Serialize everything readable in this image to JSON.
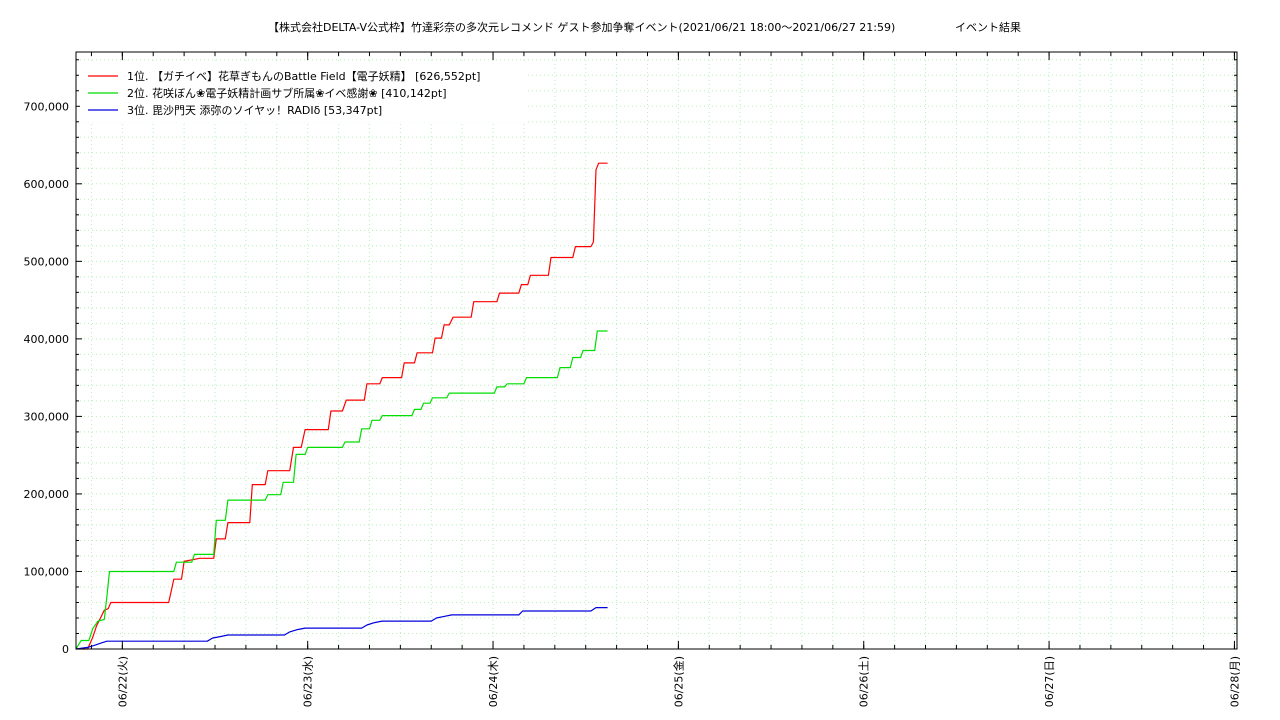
{
  "chart_data": {
    "type": "line",
    "title": "【株式会社DELTA-V公式枠】竹達彩奈の多次元レコメンド ゲスト参加争奪イベント(2021/06/21 18:00〜2021/06/27 21:59)",
    "subtitle": "イベント結果",
    "xlabel": "",
    "ylabel": "",
    "x_range": [
      "2021-06-21 18:00",
      "2021-06-28 00:20"
    ],
    "ylim": [
      0,
      770000
    ],
    "grid": true,
    "legend_position": "top-left",
    "x_ticks": [
      "06/22(火)",
      "06/23(水)",
      "06/24(木)",
      "06/25(金)",
      "06/26(土)",
      "06/27(日)",
      "06/28(月)"
    ],
    "y_ticks": [
      "0",
      "100,000",
      "200,000",
      "300,000",
      "400,000",
      "500,000",
      "600,000",
      "700,000"
    ],
    "series": [
      {
        "name": "1位. 【ガチイベ】花草ぎもんのBattle Field【電子妖精】 [626,552pt]",
        "color": "#ff0000",
        "points": [
          [
            "2021-06-21 18:00",
            0
          ],
          [
            "2021-06-21 19:30",
            0
          ],
          [
            "2021-06-21 20:10",
            15000
          ],
          [
            "2021-06-21 20:40",
            30000
          ],
          [
            "2021-06-21 21:10",
            40000
          ],
          [
            "2021-06-21 21:40",
            50000
          ],
          [
            "2021-06-21 22:10",
            52000
          ],
          [
            "2021-06-21 22:30",
            60000
          ],
          [
            "2021-06-22 06:00",
            60000
          ],
          [
            "2021-06-22 06:40",
            90000
          ],
          [
            "2021-06-22 07:40",
            90000
          ],
          [
            "2021-06-22 08:00",
            113000
          ],
          [
            "2021-06-22 10:00",
            117000
          ],
          [
            "2021-06-22 11:50",
            117000
          ],
          [
            "2021-06-22 12:10",
            142000
          ],
          [
            "2021-06-22 13:20",
            142000
          ],
          [
            "2021-06-22 13:40",
            163000
          ],
          [
            "2021-06-22 16:30",
            163000
          ],
          [
            "2021-06-22 16:50",
            212000
          ],
          [
            "2021-06-22 18:30",
            212000
          ],
          [
            "2021-06-22 18:50",
            230000
          ],
          [
            "2021-06-22 21:40",
            230000
          ],
          [
            "2021-06-22 22:10",
            260000
          ],
          [
            "2021-06-22 23:10",
            260000
          ],
          [
            "2021-06-22 23:40",
            283000
          ],
          [
            "2021-06-23 02:40",
            283000
          ],
          [
            "2021-06-23 03:00",
            307000
          ],
          [
            "2021-06-23 04:30",
            307000
          ],
          [
            "2021-06-23 05:00",
            321000
          ],
          [
            "2021-06-23 07:20",
            321000
          ],
          [
            "2021-06-23 07:40",
            342000
          ],
          [
            "2021-06-23 09:20",
            342000
          ],
          [
            "2021-06-23 09:40",
            350000
          ],
          [
            "2021-06-23 12:10",
            350000
          ],
          [
            "2021-06-23 12:30",
            369000
          ],
          [
            "2021-06-23 13:50",
            369000
          ],
          [
            "2021-06-23 14:10",
            382000
          ],
          [
            "2021-06-23 16:10",
            382000
          ],
          [
            "2021-06-23 16:30",
            401000
          ],
          [
            "2021-06-23 17:20",
            401000
          ],
          [
            "2021-06-23 17:40",
            418000
          ],
          [
            "2021-06-23 18:20",
            418000
          ],
          [
            "2021-06-23 18:50",
            428000
          ],
          [
            "2021-06-23 21:10",
            428000
          ],
          [
            "2021-06-23 21:30",
            448000
          ],
          [
            "2021-06-24 00:30",
            448000
          ],
          [
            "2021-06-24 00:50",
            459000
          ],
          [
            "2021-06-24 03:20",
            459000
          ],
          [
            "2021-06-24 03:40",
            470000
          ],
          [
            "2021-06-24 04:30",
            470000
          ],
          [
            "2021-06-24 04:50",
            482000
          ],
          [
            "2021-06-24 07:10",
            482000
          ],
          [
            "2021-06-24 07:30",
            505000
          ],
          [
            "2021-06-24 10:20",
            505000
          ],
          [
            "2021-06-24 10:40",
            519000
          ],
          [
            "2021-06-24 12:40",
            519000
          ],
          [
            "2021-06-24 13:00",
            525000
          ],
          [
            "2021-06-24 13:20",
            618000
          ],
          [
            "2021-06-24 13:40",
            626552
          ],
          [
            "2021-06-24 14:50",
            626552
          ]
        ]
      },
      {
        "name": "2位. 花咲ぼん❀電子妖精計画サブ所属❀イベ感謝❀ [410,142pt]",
        "color": "#00dd00",
        "points": [
          [
            "2021-06-21 18:00",
            0
          ],
          [
            "2021-06-21 18:40",
            11000
          ],
          [
            "2021-06-21 19:40",
            11000
          ],
          [
            "2021-06-21 20:10",
            26000
          ],
          [
            "2021-06-21 20:50",
            36000
          ],
          [
            "2021-06-21 21:40",
            38000
          ],
          [
            "2021-06-21 22:00",
            68000
          ],
          [
            "2021-06-21 22:20",
            100000
          ],
          [
            "2021-06-22 06:40",
            100000
          ],
          [
            "2021-06-22 07:00",
            112000
          ],
          [
            "2021-06-22 09:00",
            112000
          ],
          [
            "2021-06-22 09:20",
            122000
          ],
          [
            "2021-06-22 11:50",
            122000
          ],
          [
            "2021-06-22 12:10",
            166000
          ],
          [
            "2021-06-22 13:20",
            166000
          ],
          [
            "2021-06-22 13:40",
            192000
          ],
          [
            "2021-06-22 18:30",
            192000
          ],
          [
            "2021-06-22 18:50",
            199000
          ],
          [
            "2021-06-22 20:30",
            199000
          ],
          [
            "2021-06-22 20:50",
            215000
          ],
          [
            "2021-06-22 22:10",
            215000
          ],
          [
            "2021-06-22 22:30",
            251000
          ],
          [
            "2021-06-22 23:40",
            251000
          ],
          [
            "2021-06-23 00:00",
            260000
          ],
          [
            "2021-06-23 04:30",
            260000
          ],
          [
            "2021-06-23 04:50",
            267000
          ],
          [
            "2021-06-23 06:40",
            267000
          ],
          [
            "2021-06-23 07:00",
            284000
          ],
          [
            "2021-06-23 08:00",
            284000
          ],
          [
            "2021-06-23 08:20",
            295000
          ],
          [
            "2021-06-23 09:20",
            295000
          ],
          [
            "2021-06-23 09:40",
            301000
          ],
          [
            "2021-06-23 13:30",
            301000
          ],
          [
            "2021-06-23 13:50",
            309000
          ],
          [
            "2021-06-23 14:40",
            309000
          ],
          [
            "2021-06-23 15:00",
            317000
          ],
          [
            "2021-06-23 15:50",
            317000
          ],
          [
            "2021-06-23 16:10",
            324000
          ],
          [
            "2021-06-23 18:00",
            324000
          ],
          [
            "2021-06-23 18:20",
            330000
          ],
          [
            "2021-06-24 00:10",
            330000
          ],
          [
            "2021-06-24 00:30",
            338000
          ],
          [
            "2021-06-24 01:30",
            338000
          ],
          [
            "2021-06-24 01:50",
            342000
          ],
          [
            "2021-06-24 04:00",
            342000
          ],
          [
            "2021-06-24 04:20",
            350000
          ],
          [
            "2021-06-24 08:20",
            350000
          ],
          [
            "2021-06-24 08:40",
            363000
          ],
          [
            "2021-06-24 10:00",
            363000
          ],
          [
            "2021-06-24 10:20",
            376000
          ],
          [
            "2021-06-24 11:20",
            376000
          ],
          [
            "2021-06-24 11:40",
            385000
          ],
          [
            "2021-06-24 13:10",
            385000
          ],
          [
            "2021-06-24 13:30",
            410142
          ],
          [
            "2021-06-24 14:50",
            410142
          ]
        ]
      },
      {
        "name": "3位. 毘沙門天 添弥のソイヤッ！RADIδ [53,347pt]",
        "color": "#0000dd",
        "points": [
          [
            "2021-06-21 18:00",
            0
          ],
          [
            "2021-06-21 19:30",
            2000
          ],
          [
            "2021-06-21 20:30",
            5000
          ],
          [
            "2021-06-21 21:20",
            8000
          ],
          [
            "2021-06-21 22:00",
            10000
          ],
          [
            "2021-06-22 11:00",
            10000
          ],
          [
            "2021-06-22 11:40",
            14000
          ],
          [
            "2021-06-22 12:40",
            16000
          ],
          [
            "2021-06-22 13:40",
            18000
          ],
          [
            "2021-06-22 21:00",
            18000
          ],
          [
            "2021-06-22 21:40",
            22000
          ],
          [
            "2021-06-22 22:40",
            25000
          ],
          [
            "2021-06-22 23:40",
            27000
          ],
          [
            "2021-06-23 07:00",
            27000
          ],
          [
            "2021-06-23 07:40",
            31000
          ],
          [
            "2021-06-23 08:40",
            34000
          ],
          [
            "2021-06-23 09:40",
            36000
          ],
          [
            "2021-06-23 16:00",
            36000
          ],
          [
            "2021-06-23 16:40",
            40000
          ],
          [
            "2021-06-23 17:40",
            42000
          ],
          [
            "2021-06-23 18:40",
            44000
          ],
          [
            "2021-06-24 03:20",
            44000
          ],
          [
            "2021-06-24 03:50",
            49000
          ],
          [
            "2021-06-24 12:40",
            49000
          ],
          [
            "2021-06-24 13:20",
            53347
          ],
          [
            "2021-06-24 14:50",
            53347
          ]
        ]
      }
    ]
  }
}
